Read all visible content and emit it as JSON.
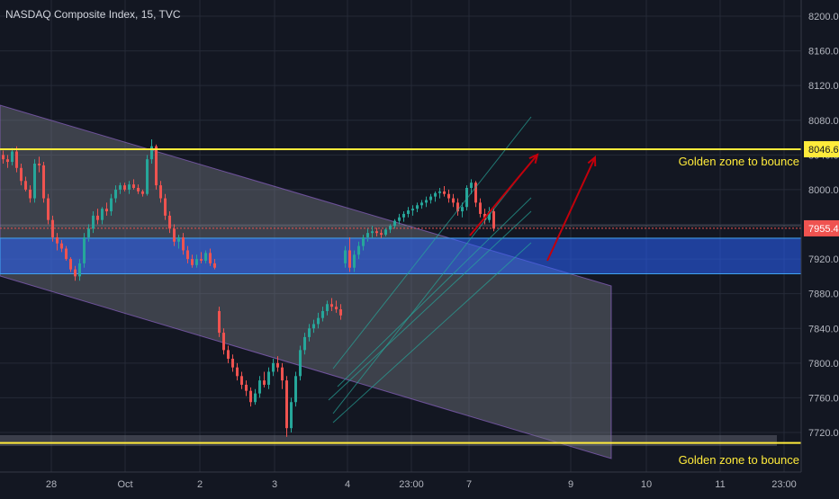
{
  "header": {
    "title": "NASDAQ Composite Index, 15, TVC"
  },
  "colors": {
    "background": "#131722",
    "grid": "#252a37",
    "up": "#26a69a",
    "down": "#ef5350",
    "golden_line": "#ffeb3b",
    "golden_text": "#ffeb3b",
    "zone_fill": "#2962ff",
    "channel_fill": "#787b86",
    "arrow": "#c2000b",
    "pitchfork": "#26a69a",
    "axis_text": "#b2b5be",
    "price_label_bg": "#ef5350"
  },
  "annotations": {
    "upper_golden_text": "Golden zone to bounce",
    "lower_golden_text": "Golden zone to bounce"
  },
  "chart_data": {
    "type": "candlestick",
    "title": "NASDAQ Composite Index, 15, TVC",
    "symbol": "NASDAQ Composite Index",
    "interval": "15",
    "source": "TVC",
    "ylim": [
      7690,
      8230
    ],
    "y_ticks": [
      "7720.0",
      "7760.0",
      "7800.0",
      "7840.0",
      "7880.0",
      "7920.0",
      "7960.0",
      "8000.0",
      "8040.0",
      "8080.0",
      "8120.0",
      "8160.0",
      "8200.0"
    ],
    "y_tick_values": [
      7720,
      7760,
      7800,
      7840,
      7880,
      7920,
      7960,
      8000,
      8040,
      8080,
      8120,
      8160,
      8200
    ],
    "x_ticks": [
      "28",
      "Oct",
      "2",
      "3",
      "4",
      "23:00",
      "7",
      "9",
      "10",
      "11",
      "23:00"
    ],
    "x_tick_index": [
      10,
      26,
      42,
      58,
      74,
      89,
      100,
      122,
      138,
      154,
      168
    ],
    "current_price": 7955.4,
    "current_price_label": "7955.4",
    "level_price": 8046.6,
    "level_price_label": "8046.6",
    "support_zone": [
      7903,
      7944
    ],
    "lower_level": 7708,
    "candles": [
      [
        8040,
        8045,
        8030,
        8035
      ],
      [
        8035,
        8040,
        8025,
        8032
      ],
      [
        8032,
        8048,
        8028,
        8044
      ],
      [
        8044,
        8050,
        8020,
        8025
      ],
      [
        8025,
        8030,
        8005,
        8010
      ],
      [
        8010,
        8015,
        7998,
        8000
      ],
      [
        8000,
        8005,
        7985,
        7990
      ],
      [
        7990,
        8035,
        7985,
        8030
      ],
      [
        8030,
        8038,
        8020,
        8028
      ],
      [
        8028,
        8032,
        7985,
        7990
      ],
      [
        7990,
        7995,
        7960,
        7965
      ],
      [
        7965,
        7970,
        7940,
        7945
      ],
      [
        7945,
        7950,
        7930,
        7938
      ],
      [
        7938,
        7942,
        7928,
        7932
      ],
      [
        7932,
        7935,
        7918,
        7920
      ],
      [
        7920,
        7922,
        7905,
        7908
      ],
      [
        7908,
        7912,
        7895,
        7900
      ],
      [
        7900,
        7920,
        7895,
        7915
      ],
      [
        7915,
        7950,
        7910,
        7945
      ],
      [
        7945,
        7960,
        7940,
        7955
      ],
      [
        7955,
        7975,
        7950,
        7970
      ],
      [
        7970,
        7978,
        7960,
        7965
      ],
      [
        7965,
        7980,
        7960,
        7978
      ],
      [
        7978,
        7985,
        7970,
        7975
      ],
      [
        7975,
        7995,
        7970,
        7990
      ],
      [
        7990,
        8005,
        7985,
        8000
      ],
      [
        8000,
        8008,
        7995,
        8005
      ],
      [
        8005,
        8008,
        7998,
        8000
      ],
      [
        8000,
        8010,
        7995,
        8006
      ],
      [
        8006,
        8012,
        8000,
        8002
      ],
      [
        8002,
        8006,
        7995,
        7998
      ],
      [
        7998,
        8000,
        7992,
        7995
      ],
      [
        7995,
        8040,
        7993,
        8035
      ],
      [
        8035,
        8058,
        8030,
        8050
      ],
      [
        8050,
        8052,
        8000,
        8005
      ],
      [
        8005,
        8010,
        7985,
        7990
      ],
      [
        7990,
        7995,
        7965,
        7970
      ],
      [
        7970,
        7975,
        7950,
        7955
      ],
      [
        7955,
        7960,
        7935,
        7940
      ],
      [
        7940,
        7948,
        7932,
        7945
      ],
      [
        7945,
        7950,
        7925,
        7930
      ],
      [
        7930,
        7935,
        7915,
        7920
      ],
      [
        7920,
        7925,
        7910,
        7913
      ],
      [
        7913,
        7925,
        7910,
        7920
      ],
      [
        7920,
        7928,
        7915,
        7918
      ],
      [
        7918,
        7930,
        7915,
        7927
      ],
      [
        7927,
        7932,
        7912,
        7915
      ],
      [
        7915,
        7920,
        7908,
        7910
      ],
      [
        7860,
        7865,
        7830,
        7835
      ],
      [
        7835,
        7840,
        7810,
        7815
      ],
      [
        7815,
        7820,
        7800,
        7805
      ],
      [
        7805,
        7810,
        7790,
        7795
      ],
      [
        7795,
        7800,
        7780,
        7785
      ],
      [
        7785,
        7790,
        7770,
        7775
      ],
      [
        7775,
        7780,
        7762,
        7768
      ],
      [
        7768,
        7772,
        7750,
        7755
      ],
      [
        7755,
        7770,
        7752,
        7765
      ],
      [
        7765,
        7785,
        7760,
        7780
      ],
      [
        7780,
        7790,
        7772,
        7775
      ],
      [
        7775,
        7795,
        7770,
        7790
      ],
      [
        7790,
        7805,
        7785,
        7800
      ],
      [
        7800,
        7808,
        7790,
        7795
      ],
      [
        7795,
        7800,
        7770,
        7780
      ],
      [
        7780,
        7785,
        7715,
        7725
      ],
      [
        7725,
        7760,
        7720,
        7755
      ],
      [
        7755,
        7790,
        7750,
        7785
      ],
      [
        7785,
        7820,
        7780,
        7815
      ],
      [
        7815,
        7835,
        7810,
        7830
      ],
      [
        7830,
        7845,
        7825,
        7840
      ],
      [
        7840,
        7850,
        7835,
        7845
      ],
      [
        7845,
        7858,
        7840,
        7852
      ],
      [
        7852,
        7865,
        7848,
        7860
      ],
      [
        7860,
        7872,
        7855,
        7868
      ],
      [
        7868,
        7875,
        7860,
        7865
      ],
      [
        7865,
        7872,
        7858,
        7862
      ],
      [
        7862,
        7868,
        7850,
        7855
      ],
      [
        7915,
        7935,
        7910,
        7930
      ],
      [
        7930,
        7945,
        7905,
        7910
      ],
      [
        7910,
        7930,
        7905,
        7925
      ],
      [
        7925,
        7940,
        7920,
        7935
      ],
      [
        7935,
        7948,
        7930,
        7945
      ],
      [
        7945,
        7955,
        7940,
        7950
      ],
      [
        7950,
        7958,
        7944,
        7952
      ],
      [
        7952,
        7956,
        7946,
        7950
      ],
      [
        7950,
        7954,
        7944,
        7948
      ],
      [
        7948,
        7956,
        7946,
        7954
      ],
      [
        7954,
        7960,
        7950,
        7958
      ],
      [
        7958,
        7966,
        7955,
        7964
      ],
      [
        7964,
        7972,
        7960,
        7968
      ],
      [
        7968,
        7975,
        7963,
        7972
      ],
      [
        7972,
        7980,
        7968,
        7976
      ],
      [
        7976,
        7982,
        7970,
        7978
      ],
      [
        7978,
        7985,
        7974,
        7982
      ],
      [
        7982,
        7988,
        7978,
        7985
      ],
      [
        7985,
        7992,
        7980,
        7988
      ],
      [
        7988,
        7995,
        7984,
        7992
      ],
      [
        7992,
        7998,
        7986,
        7996
      ],
      [
        7996,
        8002,
        7990,
        7998
      ],
      [
        7998,
        8004,
        7992,
        7995
      ],
      [
        7995,
        8000,
        7985,
        7990
      ],
      [
        7990,
        7995,
        7980,
        7985
      ],
      [
        7985,
        7990,
        7970,
        7975
      ],
      [
        7975,
        7985,
        7968,
        7980
      ],
      [
        7980,
        8005,
        7976,
        8002
      ],
      [
        8002,
        8012,
        7995,
        8008
      ],
      [
        8008,
        8010,
        7980,
        7985
      ],
      [
        7985,
        7990,
        7968,
        7972
      ],
      [
        7972,
        7978,
        7960,
        7965
      ],
      [
        7965,
        7980,
        7962,
        7975
      ],
      [
        7975,
        7978,
        7952,
        7955
      ]
    ]
  }
}
